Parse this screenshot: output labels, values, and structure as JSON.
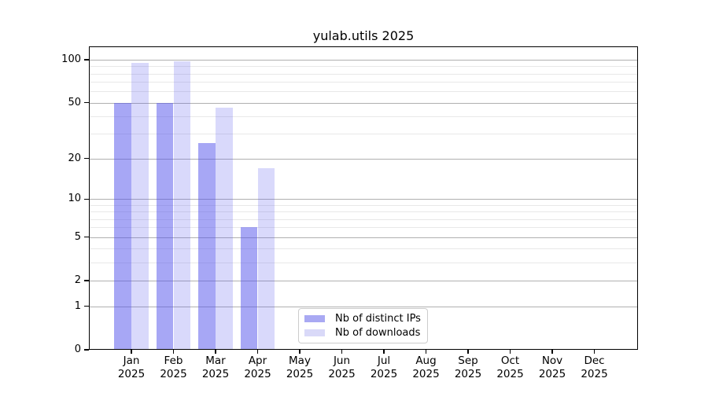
{
  "chart_data": {
    "type": "bar",
    "title": "yulab.utils 2025",
    "categories": [
      {
        "month": "Jan",
        "year": "2025"
      },
      {
        "month": "Feb",
        "year": "2025"
      },
      {
        "month": "Mar",
        "year": "2025"
      },
      {
        "month": "Apr",
        "year": "2025"
      },
      {
        "month": "May",
        "year": "2025"
      },
      {
        "month": "Jun",
        "year": "2025"
      },
      {
        "month": "Jul",
        "year": "2025"
      },
      {
        "month": "Aug",
        "year": "2025"
      },
      {
        "month": "Sep",
        "year": "2025"
      },
      {
        "month": "Oct",
        "year": "2025"
      },
      {
        "month": "Nov",
        "year": "2025"
      },
      {
        "month": "Dec",
        "year": "2025"
      }
    ],
    "series": [
      {
        "name": "Nb of distinct IPs",
        "color": "#a9a9f3",
        "bar_fill": "rgba(80,80,235,0.5)",
        "values": [
          50,
          50,
          26,
          6,
          null,
          null,
          null,
          null,
          null,
          null,
          null,
          null
        ]
      },
      {
        "name": "Nb of downloads",
        "color": "#d9d9f8",
        "bar_fill": "rgba(80,80,235,0.22)",
        "values": [
          95,
          98,
          46,
          17,
          null,
          null,
          null,
          null,
          null,
          null,
          null,
          null
        ]
      }
    ],
    "y_axis": {
      "scale": "log10(value+1)",
      "major_ticks": [
        0,
        1,
        2,
        5,
        10,
        20,
        50,
        100
      ],
      "minor_gridlines": [
        3,
        4,
        6,
        7,
        8,
        9,
        30,
        40,
        60,
        70,
        80,
        90
      ],
      "max": 124
    },
    "grid": "horizontal, major and minor, behind translucent bars",
    "legend_position": "bottom-center inside axes",
    "colors": {
      "axis": "#000000",
      "grid_major": "#b0b0b0",
      "grid_minor": "#e8e8e8",
      "legend_border": "#cccccc"
    }
  }
}
